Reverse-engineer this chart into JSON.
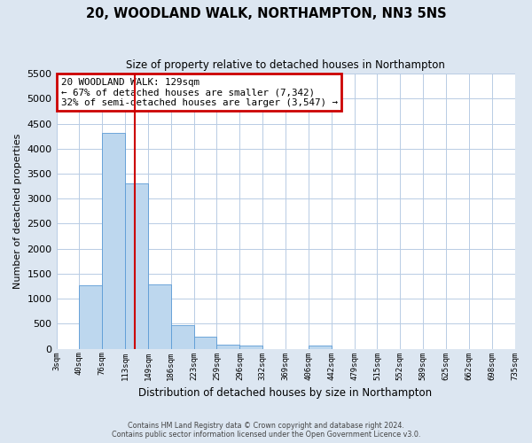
{
  "title": "20, WOODLAND WALK, NORTHAMPTON, NN3 5NS",
  "subtitle": "Size of property relative to detached houses in Northampton",
  "xlabel": "Distribution of detached houses by size in Northampton",
  "ylabel": "Number of detached properties",
  "bin_labels": [
    "3sqm",
    "40sqm",
    "76sqm",
    "113sqm",
    "149sqm",
    "186sqm",
    "223sqm",
    "259sqm",
    "296sqm",
    "332sqm",
    "369sqm",
    "406sqm",
    "442sqm",
    "479sqm",
    "515sqm",
    "552sqm",
    "589sqm",
    "625sqm",
    "662sqm",
    "698sqm",
    "735sqm"
  ],
  "bar_values": [
    0,
    1270,
    4320,
    3300,
    1290,
    480,
    240,
    90,
    60,
    0,
    0,
    60,
    0,
    0,
    0,
    0,
    0,
    0,
    0,
    0
  ],
  "bar_color": "#bdd7ee",
  "bar_edge_color": "#5b9bd5",
  "annotation_title": "20 WOODLAND WALK: 129sqm",
  "annotation_line1": "← 67% of detached houses are smaller (7,342)",
  "annotation_line2": "32% of semi-detached houses are larger (3,547) →",
  "annotation_box_color": "#ffffff",
  "annotation_box_edge_color": "#cc0000",
  "vline_color": "#cc0000",
  "vline_x": 3.44,
  "ylim": [
    0,
    5500
  ],
  "yticks": [
    0,
    500,
    1000,
    1500,
    2000,
    2500,
    3000,
    3500,
    4000,
    4500,
    5000,
    5500
  ],
  "grid_color": "#b8cce4",
  "fig_background_color": "#dce6f1",
  "plot_background_color": "#ffffff",
  "footer_line1": "Contains HM Land Registry data © Crown copyright and database right 2024.",
  "footer_line2": "Contains public sector information licensed under the Open Government Licence v3.0."
}
